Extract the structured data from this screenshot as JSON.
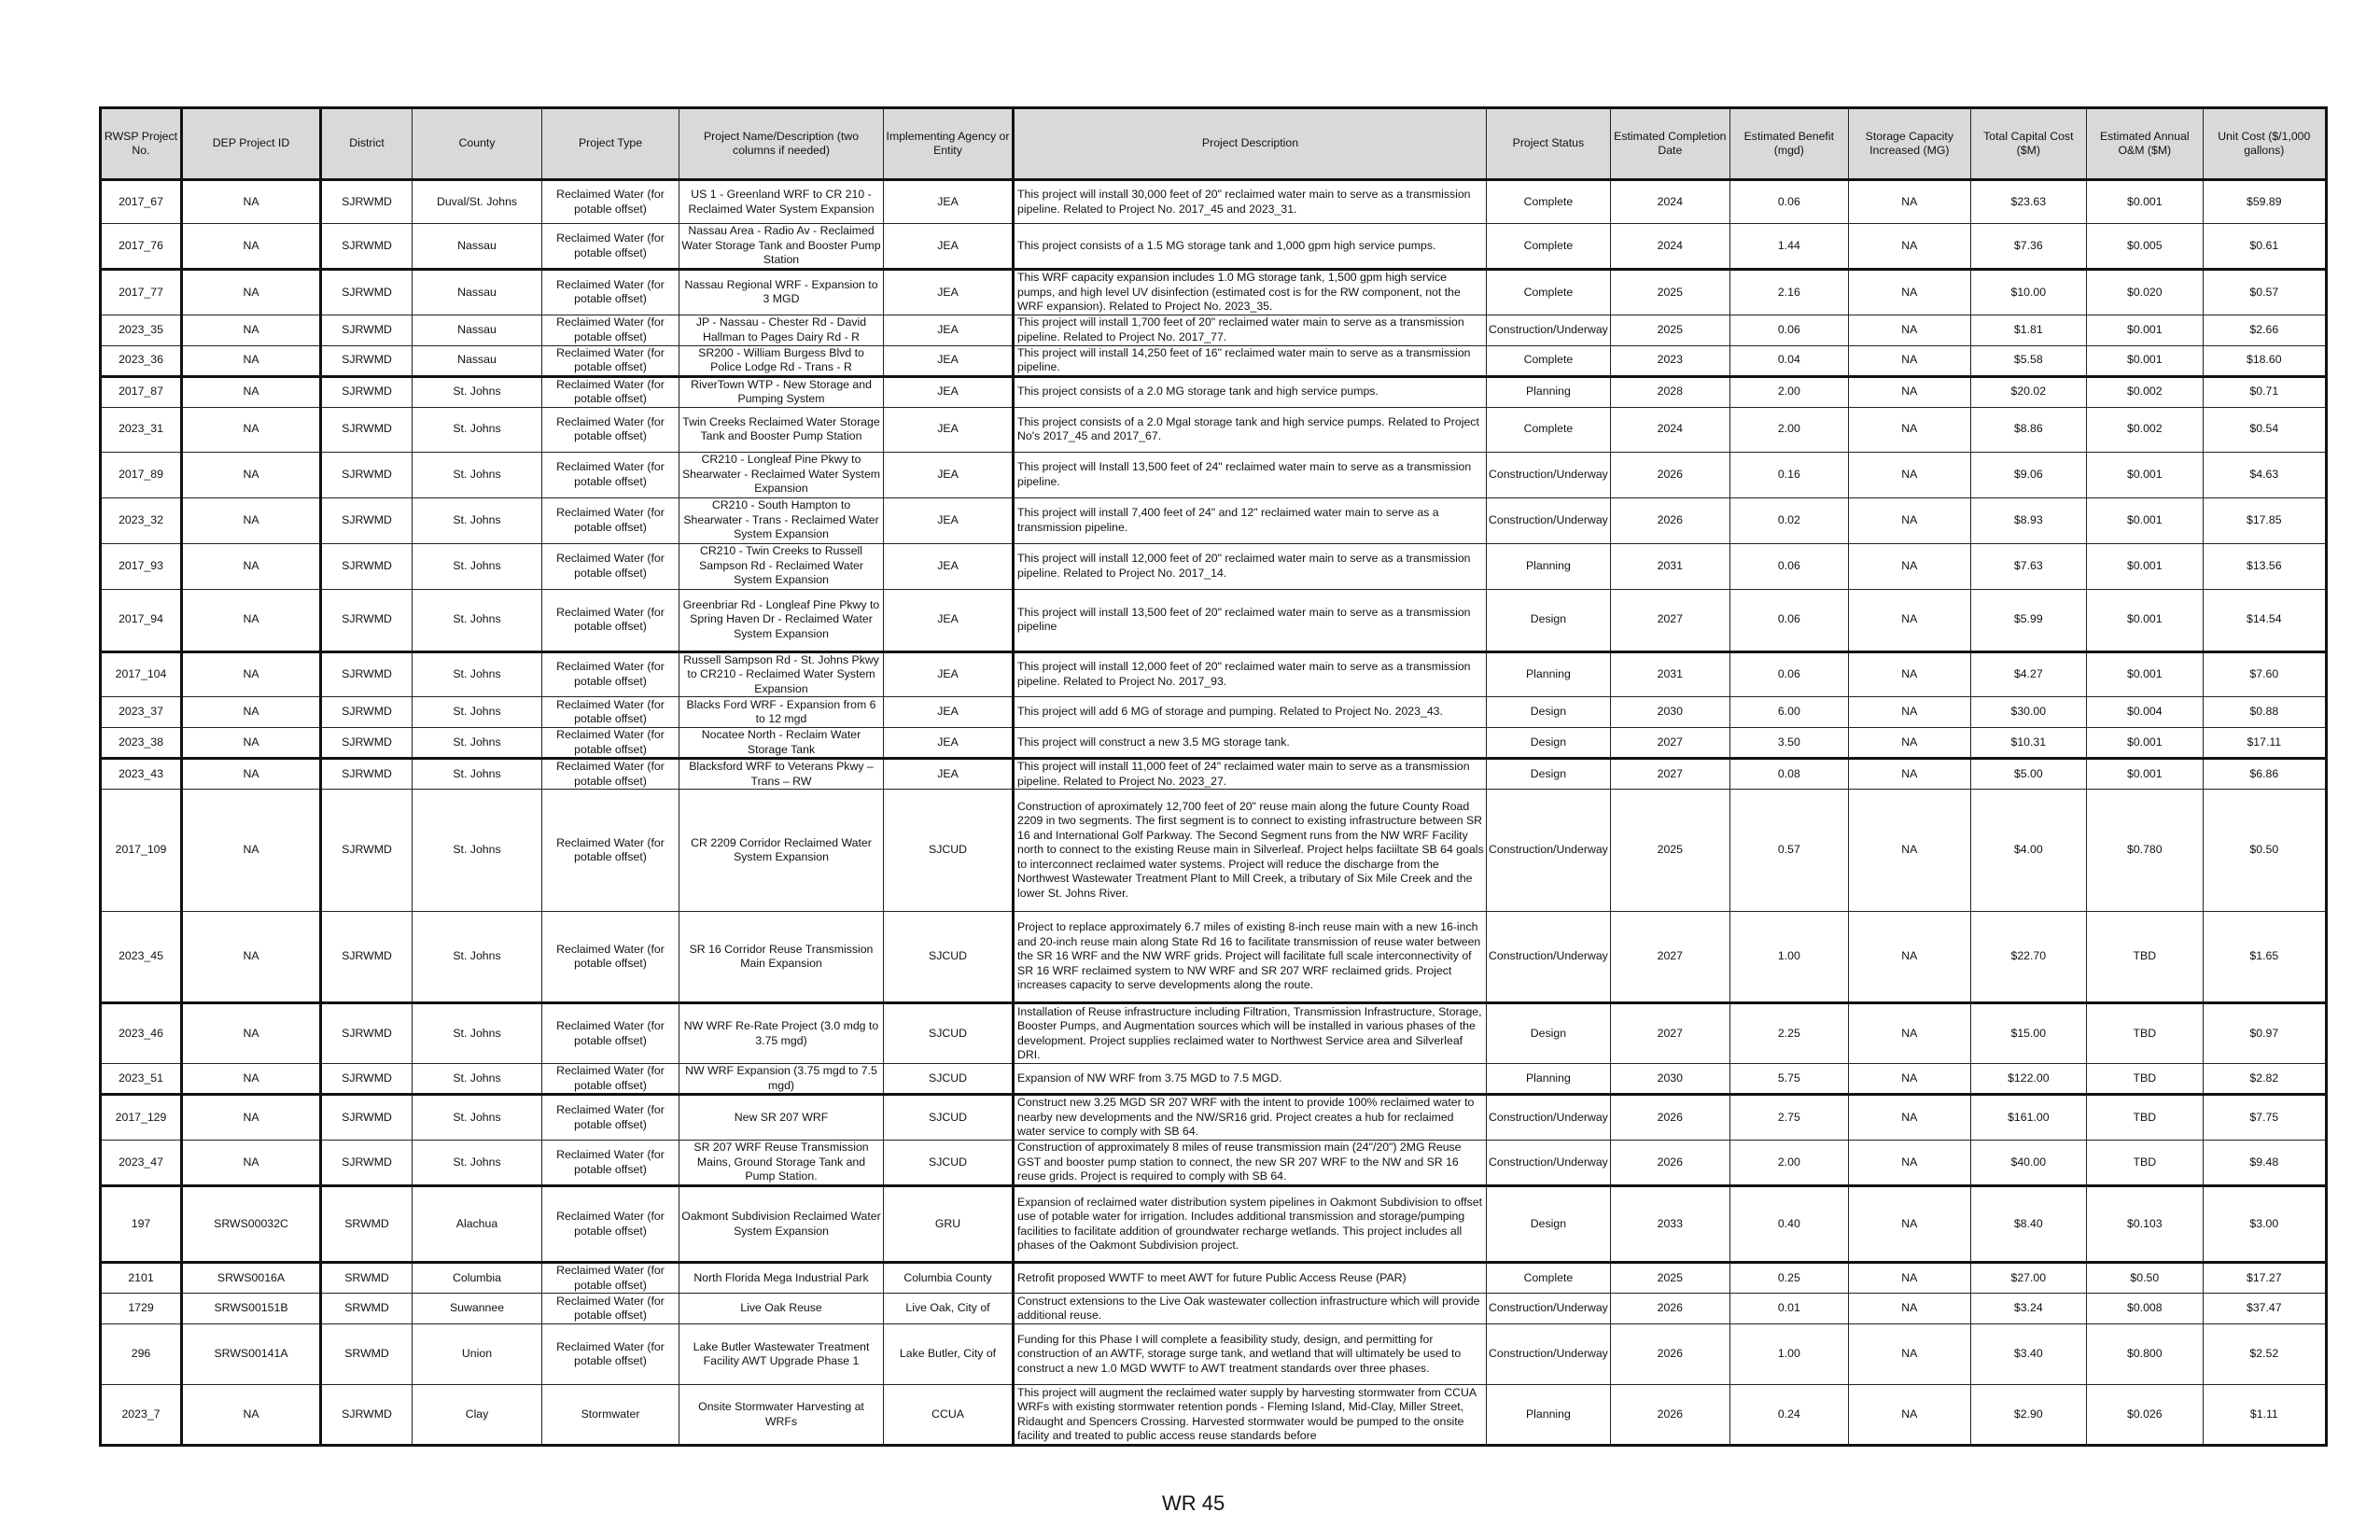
{
  "headers": [
    "RWSP Project No.",
    "DEP Project ID",
    "District",
    "County",
    "Project Type",
    "Project Name/Description (two columns if needed)",
    "Implementing Agency or Entity",
    "Project Description",
    "Project Status",
    "Estimated Completion Date",
    "Estimated Benefit (mgd)",
    "Storage Capacity Increased (MG)",
    "Total Capital Cost ($M)",
    "Estimated Annual O&M ($M)",
    "Unit Cost ($/1,000 gallons)"
  ],
  "rows": [
    [
      "2017_67",
      "NA",
      "SJRWMD",
      "Duval/St. Johns",
      "Reclaimed Water (for potable offset)",
      "US 1 - Greenland WRF to CR 210 - Reclaimed Water System Expansion",
      "JEA",
      "This project will install 30,000 feet of 20\" reclaimed water main to serve as a transmission pipeline. Related to Project No. 2017_45 and 2023_31.",
      "Complete",
      "2024",
      "0.06",
      "NA",
      "$23.63",
      "$0.001",
      "$59.89"
    ],
    [
      "2017_76",
      "NA",
      "SJRWMD",
      "Nassau",
      "Reclaimed Water (for potable offset)",
      "Nassau Area - Radio Av - Reclaimed Water Storage Tank and Booster Pump Station",
      "JEA",
      "This project consists of a 1.5 MG storage tank and 1,000 gpm high service pumps.",
      "Complete",
      "2024",
      "1.44",
      "NA",
      "$7.36",
      "$0.005",
      "$0.61"
    ],
    [
      "2017_77",
      "NA",
      "SJRWMD",
      "Nassau",
      "Reclaimed Water (for potable offset)",
      "Nassau Regional WRF - Expansion to 3 MGD",
      "JEA",
      "This WRF capacity expansion includes 1.0 MG storage tank, 1,500 gpm high service pumps, and high level UV disinfection (estimated cost is for the RW component, not the WRF expansion). Related to Project No. 2023_35.",
      "Complete",
      "2025",
      "2.16",
      "NA",
      "$10.00",
      "$0.020",
      "$0.57"
    ],
    [
      "2023_35",
      "NA",
      "SJRWMD",
      "Nassau",
      "Reclaimed Water (for potable offset)",
      "JP - Nassau - Chester Rd - David Hallman to Pages Dairy Rd - R",
      "JEA",
      "This project will install 1,700 feet of 20\" reclaimed water main to serve as a transmission pipeline. Related to Project No. 2017_77.",
      "Construction/Underway",
      "2025",
      "0.06",
      "NA",
      "$1.81",
      "$0.001",
      "$2.66"
    ],
    [
      "2023_36",
      "NA",
      "SJRWMD",
      "Nassau",
      "Reclaimed Water (for potable offset)",
      "SR200 - William Burgess Blvd to Police Lodge Rd - Trans - R",
      "JEA",
      "This project will install 14,250 feet of 16\" reclaimed water main to serve as a transmission pipeline.",
      "Complete",
      "2023",
      "0.04",
      "NA",
      "$5.58",
      "$0.001",
      "$18.60"
    ],
    [
      "2017_87",
      "NA",
      "SJRWMD",
      "St. Johns",
      "Reclaimed Water (for potable offset)",
      "RiverTown WTP - New Storage and Pumping System",
      "JEA",
      "This project consists of a 2.0 MG storage tank and high service pumps.",
      "Planning",
      "2028",
      "2.00",
      "NA",
      "$20.02",
      "$0.002",
      "$0.71"
    ],
    [
      "2023_31",
      "NA",
      "SJRWMD",
      "St. Johns",
      "Reclaimed Water (for potable offset)",
      "Twin Creeks Reclaimed Water Storage Tank and Booster Pump Station",
      "JEA",
      "This project consists of a 2.0 Mgal storage tank and high service pumps. Related to Project No's 2017_45 and 2017_67.",
      "Complete",
      "2024",
      "2.00",
      "NA",
      "$8.86",
      "$0.002",
      "$0.54"
    ],
    [
      "2017_89",
      "NA",
      "SJRWMD",
      "St. Johns",
      "Reclaimed Water (for potable offset)",
      "CR210 - Longleaf Pine Pkwy to Shearwater - Reclaimed Water System Expansion",
      "JEA",
      "This project will Install 13,500 feet of 24\" reclaimed water main to serve as a transmission pipeline.",
      "Construction/Underway",
      "2026",
      "0.16",
      "NA",
      "$9.06",
      "$0.001",
      "$4.63"
    ],
    [
      "2023_32",
      "NA",
      "SJRWMD",
      "St. Johns",
      "Reclaimed Water (for potable offset)",
      "CR210 - South Hampton to Shearwater - Trans - Reclaimed Water System Expansion",
      "JEA",
      "This project will install 7,400 feet of 24\" and 12\" reclaimed water main to serve as a transmission pipeline.",
      "Construction/Underway",
      "2026",
      "0.02",
      "NA",
      "$8.93",
      "$0.001",
      "$17.85"
    ],
    [
      "2017_93",
      "NA",
      "SJRWMD",
      "St. Johns",
      "Reclaimed Water (for potable offset)",
      "CR210 - Twin Creeks to Russell Sampson Rd - Reclaimed Water System Expansion",
      "JEA",
      "This project will install 12,000 feet of 20\" reclaimed water main to serve as a transmission pipeline. Related to Project No. 2017_14.",
      "Planning",
      "2031",
      "0.06",
      "NA",
      "$7.63",
      "$0.001",
      "$13.56"
    ],
    [
      "2017_94",
      "NA",
      "SJRWMD",
      "St. Johns",
      "Reclaimed Water (for potable offset)",
      "Greenbriar Rd - Longleaf Pine Pkwy to Spring Haven Dr - Reclaimed Water System Expansion",
      "JEA",
      "This project will install 13,500 feet of 20\" reclaimed water main to serve as a transmission pipeline",
      "Design",
      "2027",
      "0.06",
      "NA",
      "$5.99",
      "$0.001",
      "$14.54"
    ],
    [
      "2017_104",
      "NA",
      "SJRWMD",
      "St. Johns",
      "Reclaimed Water (for potable offset)",
      "Russell Sampson Rd - St. Johns Pkwy to CR210 - Reclaimed Water System Expansion",
      "JEA",
      "This project will install 12,000 feet of 20\" reclaimed water main to serve as a transmission pipeline. Related to Project No. 2017_93.",
      "Planning",
      "2031",
      "0.06",
      "NA",
      "$4.27",
      "$0.001",
      "$7.60"
    ],
    [
      "2023_37",
      "NA",
      "SJRWMD",
      "St. Johns",
      "Reclaimed Water (for potable offset)",
      "Blacks Ford WRF - Expansion from 6 to 12 mgd",
      "JEA",
      "This project will add 6 MG of storage and pumping. Related to Project No. 2023_43.",
      "Design",
      "2030",
      "6.00",
      "NA",
      "$30.00",
      "$0.004",
      "$0.88"
    ],
    [
      "2023_38",
      "NA",
      "SJRWMD",
      "St. Johns",
      "Reclaimed Water (for potable offset)",
      "Nocatee North - Reclaim Water Storage Tank",
      "JEA",
      "This project will construct a new 3.5 MG storage tank.",
      "Design",
      "2027",
      "3.50",
      "NA",
      "$10.31",
      "$0.001",
      "$17.11"
    ],
    [
      "2023_43",
      "NA",
      "SJRWMD",
      "St. Johns",
      "Reclaimed Water (for potable offset)",
      "Blacksford WRF to Veterans Pkwy – Trans – RW",
      "JEA",
      "This project will install 11,000 feet of 24\" reclaimed water main to serve as a transmission pipeline. Related to Project No. 2023_27.",
      "Design",
      "2027",
      "0.08",
      "NA",
      "$5.00",
      "$0.001",
      "$6.86"
    ],
    [
      "2017_109",
      "NA",
      "SJRWMD",
      "St. Johns",
      "Reclaimed Water (for potable offset)",
      "CR 2209 Corridor Reclaimed Water System Expansion",
      "SJCUD",
      "Construction of aproximately 12,700 feet of 20\" reuse main along the future County Road 2209 in two segments. The first segment is to connect to existing infrastructure between SR 16 and International Golf Parkway. The Second Segment runs from the NW WRF Facility north to connect to the existing Reuse main in Silverleaf. Project helps faciiltate SB 64 goals to interconnect reclaimed water systems. Project will reduce the discharge from the Northwest Wastewater Treatment Plant to Mill Creek, a tributary of Six Mile Creek and the lower St. Johns River.",
      "Construction/Underway",
      "2025",
      "0.57",
      "NA",
      "$4.00",
      "$0.780",
      "$0.50"
    ],
    [
      "2023_45",
      "NA",
      "SJRWMD",
      "St. Johns",
      "Reclaimed Water (for potable offset)",
      "SR 16 Corridor Reuse Transmission Main Expansion",
      "SJCUD",
      "Project to replace approximately 6.7 miles of existing 8-inch reuse main with a new 16-inch and 20-inch reuse main along State Rd 16 to facilitate transmission of reuse water between the SR 16 WRF and the NW WRF grids. Project will facilitate full scale interconnectivity of SR 16 WRF reclaimed system to NW WRF and SR 207 WRF reclaimed grids.  Project increases capacity to serve developments along the route.",
      "Construction/Underway",
      "2027",
      "1.00",
      "NA",
      "$22.70",
      "TBD",
      "$1.65"
    ],
    [
      "2023_46",
      "NA",
      "SJRWMD",
      "St. Johns",
      "Reclaimed Water (for potable offset)",
      "NW WRF Re-Rate Project (3.0 mdg to 3.75 mgd)",
      "SJCUD",
      "Installation of Reuse infrastructure including Filtration, Transmission Infrastructure, Storage, Booster Pumps, and Augmentation sources which will be installed in various phases of the development. Project supplies reclaimed water to Northwest Service area and Silverleaf DRI.",
      "Design",
      "2027",
      "2.25",
      "NA",
      "$15.00",
      "TBD",
      "$0.97"
    ],
    [
      "2023_51",
      "NA",
      "SJRWMD",
      "St. Johns",
      "Reclaimed Water (for potable offset)",
      "NW WRF Expansion (3.75 mgd to 7.5 mgd)",
      "SJCUD",
      "Expansion of NW WRF from 3.75 MGD to 7.5 MGD.",
      "Planning",
      "2030",
      "5.75",
      "NA",
      "$122.00",
      "TBD",
      "$2.82"
    ],
    [
      "2017_129",
      "NA",
      "SJRWMD",
      "St. Johns",
      "Reclaimed Water (for potable offset)",
      "New SR 207 WRF",
      "SJCUD",
      "Construct new 3.25 MGD SR 207 WRF with the intent to provide 100% reclaimed water to nearby new developments and the NW/SR16 grid.  Project creates a hub for reclaimed water service to comply with SB 64.",
      "Construction/Underway",
      "2026",
      "2.75",
      "NA",
      "$161.00",
      "TBD",
      "$7.75"
    ],
    [
      "2023_47",
      "NA",
      "SJRWMD",
      "St. Johns",
      "Reclaimed Water (for potable offset)",
      "SR 207 WRF Reuse Transmission Mains, Ground Storage Tank and Pump Station.",
      "SJCUD",
      "Construction of approximately 8 miles of reuse transmission main (24\"/20\") 2MG Reuse GST and booster pump station to connect,  the new SR 207 WRF to the NW and SR 16 reuse grids.  Project is required to comply with SB 64.",
      "Construction/Underway",
      "2026",
      "2.00",
      "NA",
      "$40.00",
      "TBD",
      "$9.48"
    ],
    [
      "197",
      "SRWS00032C",
      "SRWMD",
      "Alachua",
      "Reclaimed Water (for potable offset)",
      "Oakmont Subdivision Reclaimed Water System Expansion",
      "GRU",
      "Expansion of reclaimed water distribution system pipelines in Oakmont Subdivision to offset use of potable water for irrigation. Includes additional transmission and storage/pumping facilities to facilitate addition of groundwater recharge wetlands. This project includes all phases of the Oakmont Subdivision project.",
      "Design",
      "2033",
      "0.40",
      "NA",
      "$8.40",
      "$0.103",
      "$3.00"
    ],
    [
      "2101",
      "SRWS0016A",
      "SRWMD",
      "Columbia",
      "Reclaimed Water (for potable offset)",
      "North Florida Mega Industrial Park",
      "Columbia County",
      "Retrofit proposed WWTF to meet AWT for future Public Access Reuse (PAR)",
      "Complete",
      "2025",
      "0.25",
      "NA",
      "$27.00",
      "$0.50",
      "$17.27"
    ],
    [
      "1729",
      "SRWS00151B",
      "SRWMD",
      "Suwannee",
      "Reclaimed Water (for potable offset)",
      "Live Oak Reuse",
      "Live Oak, City of",
      "Construct extensions to the Live Oak wastewater collection infrastructure which will provide additional reuse.",
      "Construction/Underway",
      "2026",
      "0.01",
      "NA",
      "$3.24",
      "$0.008",
      "$37.47"
    ],
    [
      "296",
      "SRWS00141A",
      "SRWMD",
      "Union",
      "Reclaimed Water (for potable offset)",
      "Lake Butler Wastewater Treatment Facility AWT Upgrade Phase 1",
      "Lake Butler, City of",
      "Funding for this Phase I will complete a feasibility study, design, and permitting for construction of an AWTF, storage surge tank, and wetland that will ultimately be used to construct a new 1.0 MGD WWTF to AWT treatment standards over three phases.",
      "Construction/Underway",
      "2026",
      "1.00",
      "NA",
      "$3.40",
      "$0.800",
      "$2.52"
    ],
    [
      "2023_7",
      "NA",
      "SJRWMD",
      "Clay",
      "Stormwater",
      "Onsite Stormwater Harvesting at WRFs",
      "CCUA",
      "This project will augment the reclaimed water supply by harvesting stormwater from CCUA WRFs with existing stormwater retention ponds - Fleming Island, Mid-Clay, Miller Street, Ridaught and Spencers Crossing. Harvested stormwater would be pumped to the onsite facility and treated to public access reuse standards before",
      "Planning",
      "2026",
      "0.24",
      "NA",
      "$2.90",
      "$0.026",
      "$1.11"
    ]
  ],
  "footer": {
    "page_label": "WR 45"
  },
  "colors": {
    "header_bg": "#d9d9d9",
    "border": "#222222"
  }
}
